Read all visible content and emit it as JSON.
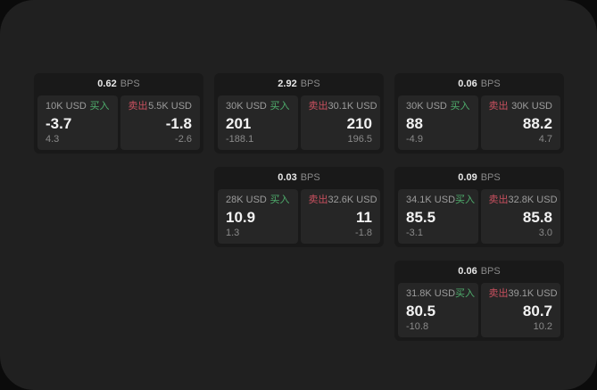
{
  "colors": {
    "buy": "#4fae6d",
    "sell": "#c9505f",
    "window_bg": "#202020",
    "card_bg": "#191919",
    "panel_bg": "#262626"
  },
  "bps_unit": "BPS",
  "cards": [
    {
      "row": 1,
      "col": 1,
      "bps": "0.62",
      "buy": {
        "size": "10K USD",
        "label": "买入",
        "value": "-3.7",
        "sub": "4.3"
      },
      "sell": {
        "size": "5.5K USD",
        "label": "卖出",
        "value": "-1.8",
        "sub": "-2.6"
      }
    },
    {
      "row": 1,
      "col": 2,
      "bps": "2.92",
      "buy": {
        "size": "30K USD",
        "label": "买入",
        "value": "201",
        "sub": "-188.1"
      },
      "sell": {
        "size": "30.1K USD",
        "label": "卖出",
        "value": "210",
        "sub": "196.5"
      }
    },
    {
      "row": 1,
      "col": 3,
      "bps": "0.06",
      "buy": {
        "size": "30K USD",
        "label": "买入",
        "value": "88",
        "sub": "-4.9"
      },
      "sell": {
        "size": "30K USD",
        "label": "卖出",
        "value": "88.2",
        "sub": "4.7"
      }
    },
    {
      "row": 2,
      "col": 2,
      "bps": "0.03",
      "buy": {
        "size": "28K USD",
        "label": "买入",
        "value": "10.9",
        "sub": "1.3"
      },
      "sell": {
        "size": "32.6K USD",
        "label": "卖出",
        "value": "11",
        "sub": "-1.8"
      }
    },
    {
      "row": 2,
      "col": 3,
      "bps": "0.09",
      "buy": {
        "size": "34.1K USD",
        "label": "买入",
        "value": "85.5",
        "sub": "-3.1"
      },
      "sell": {
        "size": "32.8K USD",
        "label": "卖出",
        "value": "85.8",
        "sub": "3.0"
      }
    },
    {
      "row": 3,
      "col": 3,
      "bps": "0.06",
      "buy": {
        "size": "31.8K USD",
        "label": "买入",
        "value": "80.5",
        "sub": "-10.8"
      },
      "sell": {
        "size": "39.1K USD",
        "label": "卖出",
        "value": "80.7",
        "sub": "10.2"
      }
    }
  ]
}
